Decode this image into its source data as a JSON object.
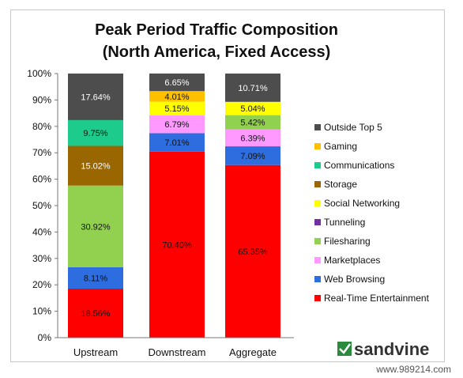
{
  "chart_data": {
    "type": "bar",
    "stacked": true,
    "title_lines": [
      "Peak Period Traffic Composition",
      "(North America, Fixed Access)"
    ],
    "categories": [
      "Upstream",
      "Downstream",
      "Aggregate"
    ],
    "ylim": [
      0,
      100
    ],
    "y_ticks": [
      "0%",
      "10%",
      "20%",
      "30%",
      "40%",
      "50%",
      "60%",
      "70%",
      "80%",
      "90%",
      "100%"
    ],
    "grid": false,
    "legend_position": "right",
    "series": [
      {
        "name": "Real-Time Entertainment",
        "color": "#ff0000",
        "values": [
          18.56,
          70.4,
          65.35
        ],
        "labels": [
          "18.56%",
          "70.40%",
          "65.35%"
        ]
      },
      {
        "name": "Web Browsing",
        "color": "#2e6de0",
        "values": [
          8.11,
          7.01,
          7.09
        ],
        "labels": [
          "8.11%",
          "7.01%",
          "7.09%"
        ]
      },
      {
        "name": "Marketplaces",
        "color": "#ff99ff",
        "values": [
          0,
          6.79,
          6.39
        ],
        "labels": [
          "",
          "6.79%",
          "6.39%"
        ]
      },
      {
        "name": "Filesharing",
        "color": "#92d050",
        "values": [
          30.92,
          0,
          5.42
        ],
        "labels": [
          "30.92%",
          "",
          "5.42%"
        ]
      },
      {
        "name": "Tunneling",
        "color": "#7030a0",
        "values": [
          0,
          0,
          0
        ],
        "labels": [
          "",
          "",
          ""
        ]
      },
      {
        "name": "Social Networking",
        "color": "#ffff00",
        "values": [
          0,
          5.15,
          5.04
        ],
        "labels": [
          "",
          "5.15%",
          "5.04%"
        ]
      },
      {
        "name": "Storage",
        "color": "#996600",
        "values": [
          15.02,
          0,
          0
        ],
        "labels": [
          "15.02%",
          "",
          ""
        ]
      },
      {
        "name": "Communications",
        "color": "#1dcc8c",
        "values": [
          9.75,
          0,
          0
        ],
        "labels": [
          "9.75%",
          "",
          ""
        ]
      },
      {
        "name": "Gaming",
        "color": "#ffc000",
        "values": [
          0,
          4.01,
          0
        ],
        "labels": [
          "",
          "4.01%",
          ""
        ]
      },
      {
        "name": "Outside Top 5",
        "color": "#4d4d4d",
        "values": [
          17.64,
          6.65,
          10.71
        ],
        "labels": [
          "17.64%",
          "6.65%",
          "10.71%"
        ]
      }
    ],
    "legend_order": [
      "Outside Top 5",
      "Gaming",
      "Communications",
      "Storage",
      "Social Networking",
      "Tunneling",
      "Filesharing",
      "Marketplaces",
      "Web Browsing",
      "Real-Time Entertainment"
    ]
  },
  "brand": {
    "name": "sandvine",
    "icon": "sandvine-logo-icon",
    "color": "#2b8a3e"
  },
  "watermark": "www.989214.com"
}
